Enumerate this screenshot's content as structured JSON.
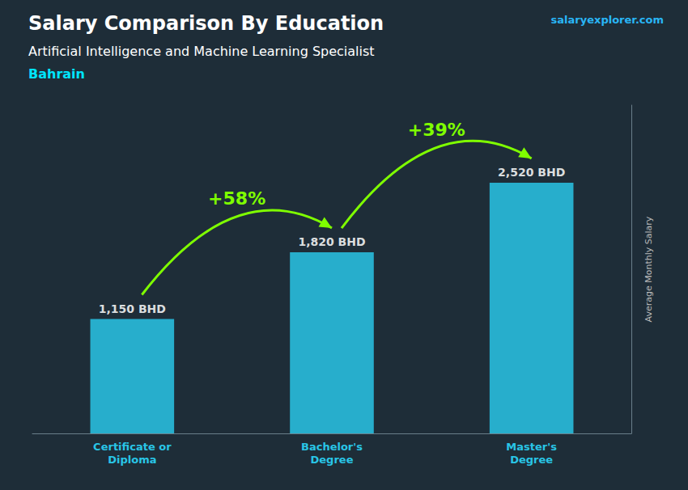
{
  "chart_data": {
    "type": "bar",
    "title": "Salary Comparison By Education",
    "subtitle": [
      "Artificial Intelligence and Machine Learning Specialist",
      "Bahrain"
    ],
    "ylabel": "Average Monthly Salary",
    "categories": [
      "Certificate or\nDiploma",
      "Bachelor's\nDegree",
      "Master's\nDegree"
    ],
    "values": [
      1150,
      1820,
      2520
    ],
    "value_labels": [
      "1,150 BHD",
      "1,820 BHD",
      "2,520 BHD"
    ],
    "data_labels": true,
    "color": "#29c5e6",
    "ylim": [
      0,
      3300
    ],
    "tick_labels": "x",
    "grid": false,
    "annotations": [
      {
        "text": "salaryexplorer.com"
      },
      {
        "text": "+58%",
        "from": "Certificate or\nDiploma",
        "to": "Bachelor's\nDegree"
      },
      {
        "text": "+39%",
        "from": "Bachelor's\nDegree",
        "to": "Master's\nDegree"
      }
    ]
  }
}
